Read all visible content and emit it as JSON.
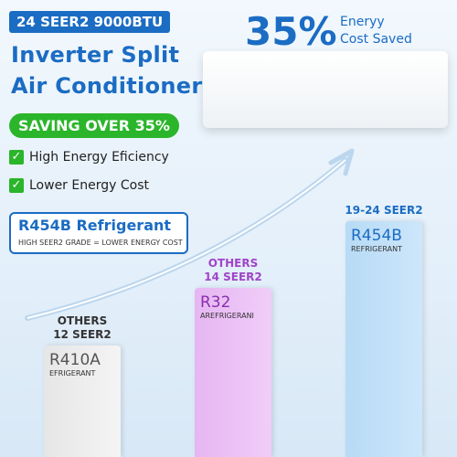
{
  "header": {
    "badge": "24 SEER2 9000BTU",
    "title_line1": "Inverter Split",
    "title_line2": "Air Conditioner",
    "saving": "SAVING OVER 35%"
  },
  "features": [
    "High Energy Eficiency",
    "Lower Energy Cost"
  ],
  "refrigerant_box": {
    "title": "R454B Refrigerant",
    "note": "HIGH SEER2 GRADE = LOWER ENERGY COST"
  },
  "savings": {
    "percent": "35%",
    "line1": "Eneryy",
    "line2": "Cost Saved"
  },
  "bars": [
    {
      "label": [
        "OTHERS",
        "12 SEER2"
      ],
      "name": "R410A",
      "sub": "EFRIGERANT"
    },
    {
      "label": [
        "OTHERS",
        "14 SEER2"
      ],
      "name": "R32",
      "sub": "AREFRIGERANI"
    },
    {
      "label": [
        "19-24 SEER2"
      ],
      "name": "R454B",
      "sub": "REFRIGERANT"
    }
  ]
}
